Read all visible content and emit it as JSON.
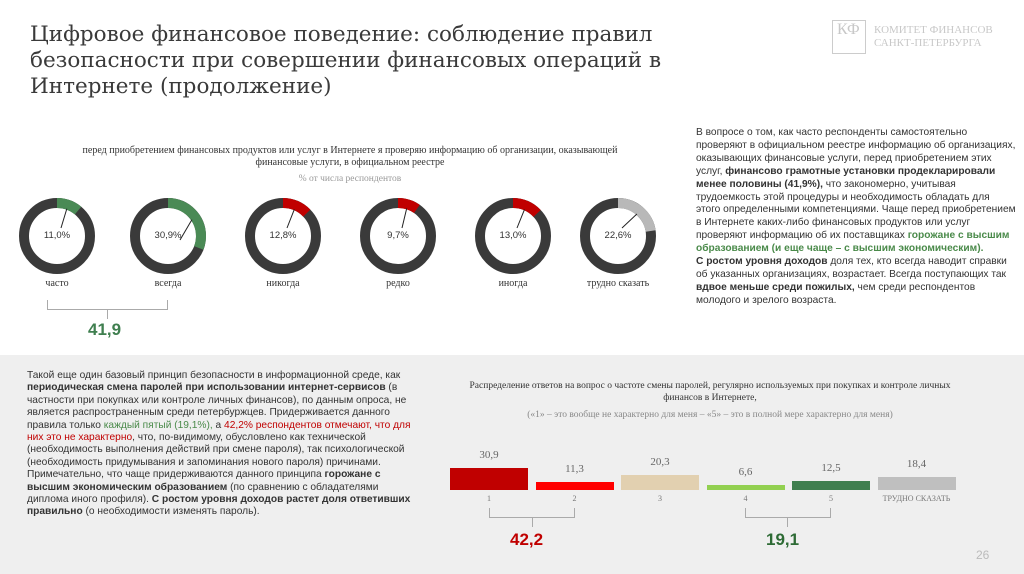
{
  "header": {
    "title": "Цифровое финансовое поведение: соблюдение правил безопасности при совершении финансовых операций в Интернете (продолжение)",
    "logo_mark": "КФ",
    "logo_line1": "КОМИТЕТ ФИНАНСОВ",
    "logo_line2": "САНКТ-ПЕТЕРБУРГА"
  },
  "donut_section": {
    "question": "перед приобретением финансовых продуктов или услуг в Интернете я проверяю информацию об организации, оказывающей финансовые услуги, в официальном реестре",
    "subtitle": "% от числа респондентов",
    "total": "41,9",
    "total_color": "#3f7f4f"
  },
  "chart_data": [
    {
      "type": "pie",
      "variant": "donut",
      "title": "перед приобретением финансовых продуктов или услуг в Интернете я проверяю информацию об организации, оказывающей финансовые услуги, в официальном реестре",
      "subtitle": "% от числа респондентов",
      "categories": [
        "часто",
        "всегда",
        "никогда",
        "редко",
        "иногда",
        "трудно сказать"
      ],
      "values": [
        11.0,
        30.9,
        12.8,
        9.7,
        13.0,
        22.6
      ],
      "labels": [
        "11,0%",
        "30,9%",
        "12,8%",
        "9,7%",
        "13,0%",
        "22,6%"
      ],
      "colors": [
        "#4a8a55",
        "#4a8a55",
        "#c00000",
        "#c00000",
        "#c00000",
        "#b8b8b8"
      ],
      "remainder_color": "#3a3a3a"
    },
    {
      "type": "bar",
      "title": "Распределение ответов на вопрос о частоте смены паролей, регулярно используемых при покупках и контроле личных финансов в Интернете,",
      "subtitle": "(«1» – это вообще не характерно для меня – «5» – это в полной мере характерно для меня)",
      "categories": [
        "1",
        "2",
        "3",
        "4",
        "5",
        "ТРУДНО СКАЗАТЬ"
      ],
      "values": [
        30.9,
        11.3,
        20.3,
        6.6,
        12.5,
        18.4
      ],
      "labels": [
        "30,9",
        "11,3",
        "20,3",
        "6,6",
        "12,5",
        "18,4"
      ],
      "colors": [
        "#c00000",
        "#ff0000",
        "#e2d0b0",
        "#92d050",
        "#3f7f4f",
        "#bfbfbf"
      ],
      "groups": [
        {
          "label": "42,2",
          "categories": [
            "1",
            "2"
          ],
          "color": "#c00000"
        },
        {
          "label": "19,1",
          "categories": [
            "4",
            "5"
          ],
          "color": "#2e6b35"
        }
      ]
    }
  ],
  "right_text": {
    "p1": "В вопросе о том, как часто респонденты самостоятельно проверяют в официальном реестре информацию об организациях, оказывающих финансовые услуги, перед приобретением этих услуг, ",
    "b1": "финансово грамотные установки продекларировали менее половины (41,9%),",
    "p2": " что закономерно, учитывая трудоемкость этой процедуры и необходимость обладать для этого определенными компетенциями. Чаще перед приобретением в Интернете каких-либо финансовых продуктов или услуг проверяют информацию об их поставщиках ",
    "g1": "горожане с высшим образованием (и еще чаще – с высшим экономическим).",
    "b2": "С ростом уровня доходов",
    "p3": " доля тех, кто всегда наводит справки об указанных организациях, возрастает. Всегда поступающих так ",
    "b3": "вдвое меньше среди пожилых,",
    "p4": " чем среди респондентов молодого и зрелого возраста."
  },
  "left_text": {
    "p1": "Такой еще один базовый принцип безопасности в информационной среде, как ",
    "b1": "периодическая смена паролей при использовании интернет-сервисов",
    "p2": " (в частности при покупках или контроле личных финансов), по данным опроса, не является распространенным среди петербуржцев. Придерживается данного правила только ",
    "g1": "каждый пятый (19,1%),",
    "p3": " а ",
    "r1": "42,2% респондентов отмечают, что для них это не характерно",
    "p4": ", что, по-видимому, обусловлено как технической (необходимость выполнения действий при смене пароля), так психологической (необходимость придумывания и запоминания нового пароля) причинами. Примечательно, что чаще придерживаются данного принципа ",
    "b2": "горожане с высшим экономическим образованием",
    "p5": " (по сравнению с обладателями диплома иного профиля). ",
    "b3": "С ростом уровня доходов растет доля ответивших правильно",
    "p6": " (о необходимости изменять пароль)."
  },
  "page_number": "26"
}
